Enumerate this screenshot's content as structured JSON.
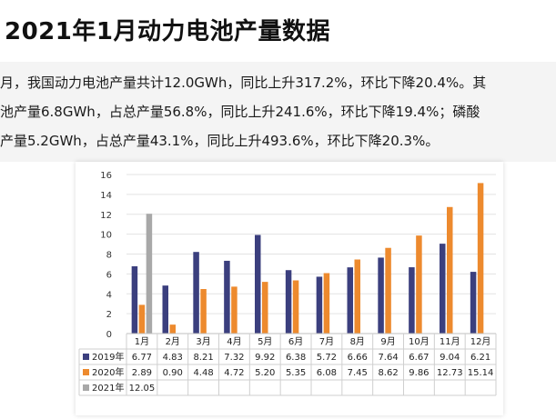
{
  "header": {
    "title": "2021年1月动力电池产量数据"
  },
  "paragraph": {
    "lines": [
      "月，我国动力电池产量共计12.0GWh，同比上升317.2%，环比下降20.4%。其",
      "池产量6.8GWh，占总产量56.8%，同比上升241.6%，环比下降19.4%；磷酸",
      "产量5.2GWh，占总产量43.1%，同比上升493.6%，环比下降20.3%。"
    ]
  },
  "colors": {
    "series_2019": "#3b3f7e",
    "series_2020": "#ed8a2e",
    "series_2021": "#a8a8a8",
    "grid": "#e3e3e3"
  },
  "chart_data": {
    "type": "bar",
    "categories": [
      "1月",
      "2月",
      "3月",
      "4月",
      "5月",
      "6月",
      "7月",
      "8月",
      "9月",
      "10月",
      "11月",
      "12月"
    ],
    "series": [
      {
        "name": "2019年",
        "values": [
          6.77,
          4.83,
          8.21,
          7.32,
          9.92,
          6.38,
          5.72,
          6.66,
          7.64,
          6.67,
          9.04,
          6.21
        ],
        "labels": [
          "6.77",
          "4.83",
          "8.21",
          "7.32",
          "9.92",
          "6.38",
          "5.72",
          "6.66",
          "7.64",
          "6.67",
          "9.04",
          "6.21"
        ]
      },
      {
        "name": "2020年",
        "values": [
          2.89,
          0.9,
          4.48,
          4.72,
          5.2,
          5.35,
          6.08,
          7.45,
          8.62,
          9.86,
          12.73,
          15.14
        ],
        "labels": [
          "2.89",
          "0.90",
          "4.48",
          "4.72",
          "5.20",
          "5.35",
          "6.08",
          "7.45",
          "8.62",
          "9.86",
          "12.73",
          "15.14"
        ]
      },
      {
        "name": "2021年",
        "values": [
          12.05,
          null,
          null,
          null,
          null,
          null,
          null,
          null,
          null,
          null,
          null,
          null
        ],
        "labels": [
          "12.05",
          "",
          "",
          "",
          "",
          "",
          "",
          "",
          "",
          "",
          "",
          ""
        ]
      }
    ],
    "yticks": [
      "0",
      "2",
      "4",
      "6",
      "8",
      "10",
      "12",
      "14",
      "16"
    ],
    "ylim": [
      0,
      16
    ],
    "grid": true,
    "legend": "data-table-below"
  }
}
